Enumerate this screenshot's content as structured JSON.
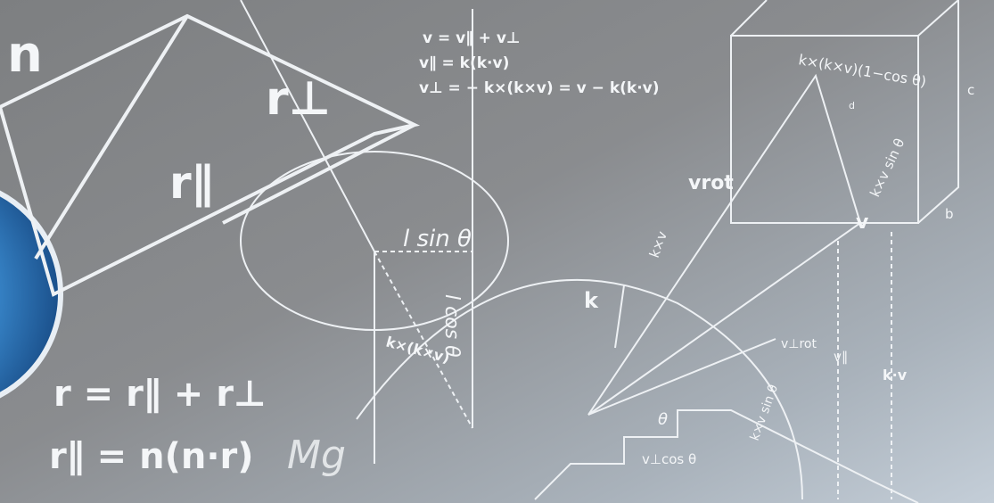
{
  "formulas": {
    "n": "n",
    "r_perp": "r⊥",
    "r_par": "r∥",
    "v_sum": "v = v∥ + v⊥",
    "v_par_def": "v∥ = k(k·v)",
    "v_perp_def": "v⊥ = − k×(k×v) = v − k(k·v)",
    "l_sin": "l sin θ",
    "l_cos": "l cos θ",
    "kkv": "k×(k×v)",
    "r_sum": "r = r∥ + r⊥",
    "r_par_def": "r∥ = n(n·r)",
    "mg": "Mg",
    "kkv_cos": "k×(k×v)(1−cos θ)",
    "d": "d",
    "c": "c",
    "b": "b",
    "v_rot": "vrot",
    "v": "v",
    "kv_sin": "k×v sin θ",
    "kv": "k×v",
    "k": "k",
    "v_perp_rot": "v⊥rot",
    "v_par": "v∥",
    "k_dot_v": "k·v",
    "theta": "θ",
    "v_perp_cos": "v⊥cos θ",
    "kv_sin2": "k×v sin θ"
  }
}
